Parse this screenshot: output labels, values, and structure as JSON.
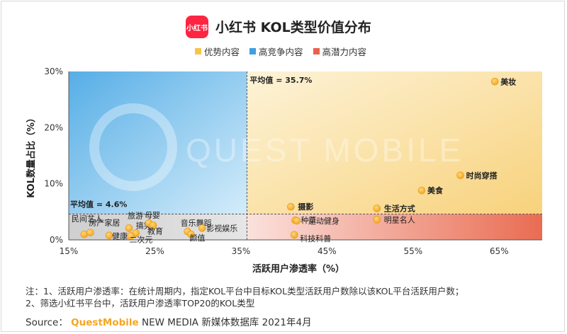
{
  "header": {
    "logo_text": "小红书",
    "title": "小红书 KOL类型价值分布"
  },
  "legend": [
    {
      "label": "优势内容",
      "color": "#f5c54a"
    },
    {
      "label": "高竞争内容",
      "color": "#3f9fe0"
    },
    {
      "label": "高潜力内容",
      "color": "#e8624a"
    }
  ],
  "chart_data": {
    "type": "scatter",
    "title": "小红书 KOL类型价值分布",
    "xlabel": "活跃用户渗透率（%）",
    "ylabel": "KOL数量占比（%）",
    "xlim": [
      15,
      70
    ],
    "ylim": [
      0,
      30
    ],
    "x_ticks": [
      "15%",
      "25%",
      "35%",
      "45%",
      "55%",
      "65%"
    ],
    "y_ticks": [
      "0%",
      "10%",
      "20%",
      "30%"
    ],
    "avg_x": 35.7,
    "avg_y": 4.6,
    "avg_x_label": "平均值 = 35.7%",
    "avg_y_label": "平均值 = 4.6%",
    "watermark": "QUEST MOBILE",
    "points": [
      {
        "label": "美妆",
        "x": 64.5,
        "y": 28.2
      },
      {
        "label": "时尚穿搭",
        "x": 60.5,
        "y": 11.5
      },
      {
        "label": "美食",
        "x": 56.0,
        "y": 8.8
      },
      {
        "label": "摄影",
        "x": 40.8,
        "y": 5.9
      },
      {
        "label": "生活方式",
        "x": 50.8,
        "y": 5.6
      },
      {
        "label": "种草",
        "x": 41.3,
        "y": 3.5
      },
      {
        "label": "运动健身",
        "x": 41.5,
        "y": 3.4
      },
      {
        "label": "明星名人",
        "x": 50.8,
        "y": 3.6
      },
      {
        "label": "科技科普",
        "x": 41.2,
        "y": 0.9
      },
      {
        "label": "民间艺人",
        "x": 16.8,
        "y": 1.0
      },
      {
        "label": "房产家居",
        "x": 17.5,
        "y": 1.3
      },
      {
        "label": "健康",
        "x": 19.7,
        "y": 0.8
      },
      {
        "label": "旅游",
        "x": 22.0,
        "y": 2.1
      },
      {
        "label": "搞笑",
        "x": 22.8,
        "y": 1.2
      },
      {
        "label": "二次元",
        "x": 22.2,
        "y": 0.7
      },
      {
        "label": "母婴",
        "x": 24.3,
        "y": 3.0
      },
      {
        "label": "教育",
        "x": 24.8,
        "y": 2.6
      },
      {
        "label": "音乐舞蹈",
        "x": 28.8,
        "y": 1.5
      },
      {
        "label": "影视娱乐",
        "x": 30.5,
        "y": 2.1
      },
      {
        "label": "颜值",
        "x": 29.2,
        "y": 1.0
      }
    ]
  },
  "notes": [
    "注：1、活跃用户渗透率：在统计周期内，指定KOL平台中目标KOL类型活跃用户数除以该KOL平台活跃用户数；",
    "2、筛选小红书平台中，活跃用户渗透率TOP20的KOL类型"
  ],
  "source": {
    "prefix": "Source：",
    "brand": "QuestMobile",
    "rest": " NEW MEDIA 新媒体数据库 2021年4月"
  }
}
